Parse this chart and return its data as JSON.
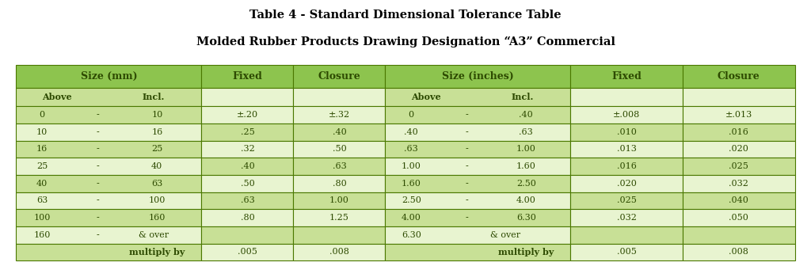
{
  "title_line1": "Table 4 - Standard Dimensional Tolerance Table",
  "title_line2": "Molded Rubber Products Drawing Designation “A3” Commercial",
  "title_fontsize": 10.5,
  "header_bg": "#8dc44e",
  "row_bg_dark": "#c8e096",
  "row_bg_light": "#e8f4d0",
  "border_color": "#4a7800",
  "text_color": "#2d4a00",
  "mm_rows": [
    [
      "0",
      "-",
      "10",
      "±.20",
      "±.32"
    ],
    [
      "10",
      "-",
      "16",
      ".25",
      ".40"
    ],
    [
      "16",
      "-",
      "25",
      ".32",
      ".50"
    ],
    [
      "25",
      "-",
      "40",
      ".40",
      ".63"
    ],
    [
      "40",
      "-",
      "63",
      ".50",
      ".80"
    ],
    [
      "63",
      "-",
      "100",
      ".63",
      "1.00"
    ],
    [
      "100",
      "-",
      "160",
      ".80",
      "1.25"
    ],
    [
      "160",
      "-",
      "& over",
      "",
      ""
    ],
    [
      "",
      "multiply by",
      "",
      ".005",
      ".008"
    ]
  ],
  "in_rows": [
    [
      "0",
      "-",
      ".40",
      "±.008",
      "±.013"
    ],
    [
      ".40",
      "-",
      ".63",
      ".010",
      ".016"
    ],
    [
      ".63",
      "-",
      "1.00",
      ".013",
      ".020"
    ],
    [
      "1.00",
      "-",
      "1.60",
      ".016",
      ".025"
    ],
    [
      "1.60",
      "-",
      "2.50",
      ".020",
      ".032"
    ],
    [
      "2.50",
      "-",
      "4.00",
      ".025",
      ".040"
    ],
    [
      "4.00",
      "-",
      "6.30",
      ".032",
      ".050"
    ],
    [
      "6.30",
      "",
      "& over",
      "",
      ""
    ],
    [
      "",
      "multiply by",
      "",
      ".005",
      ".008"
    ]
  ]
}
